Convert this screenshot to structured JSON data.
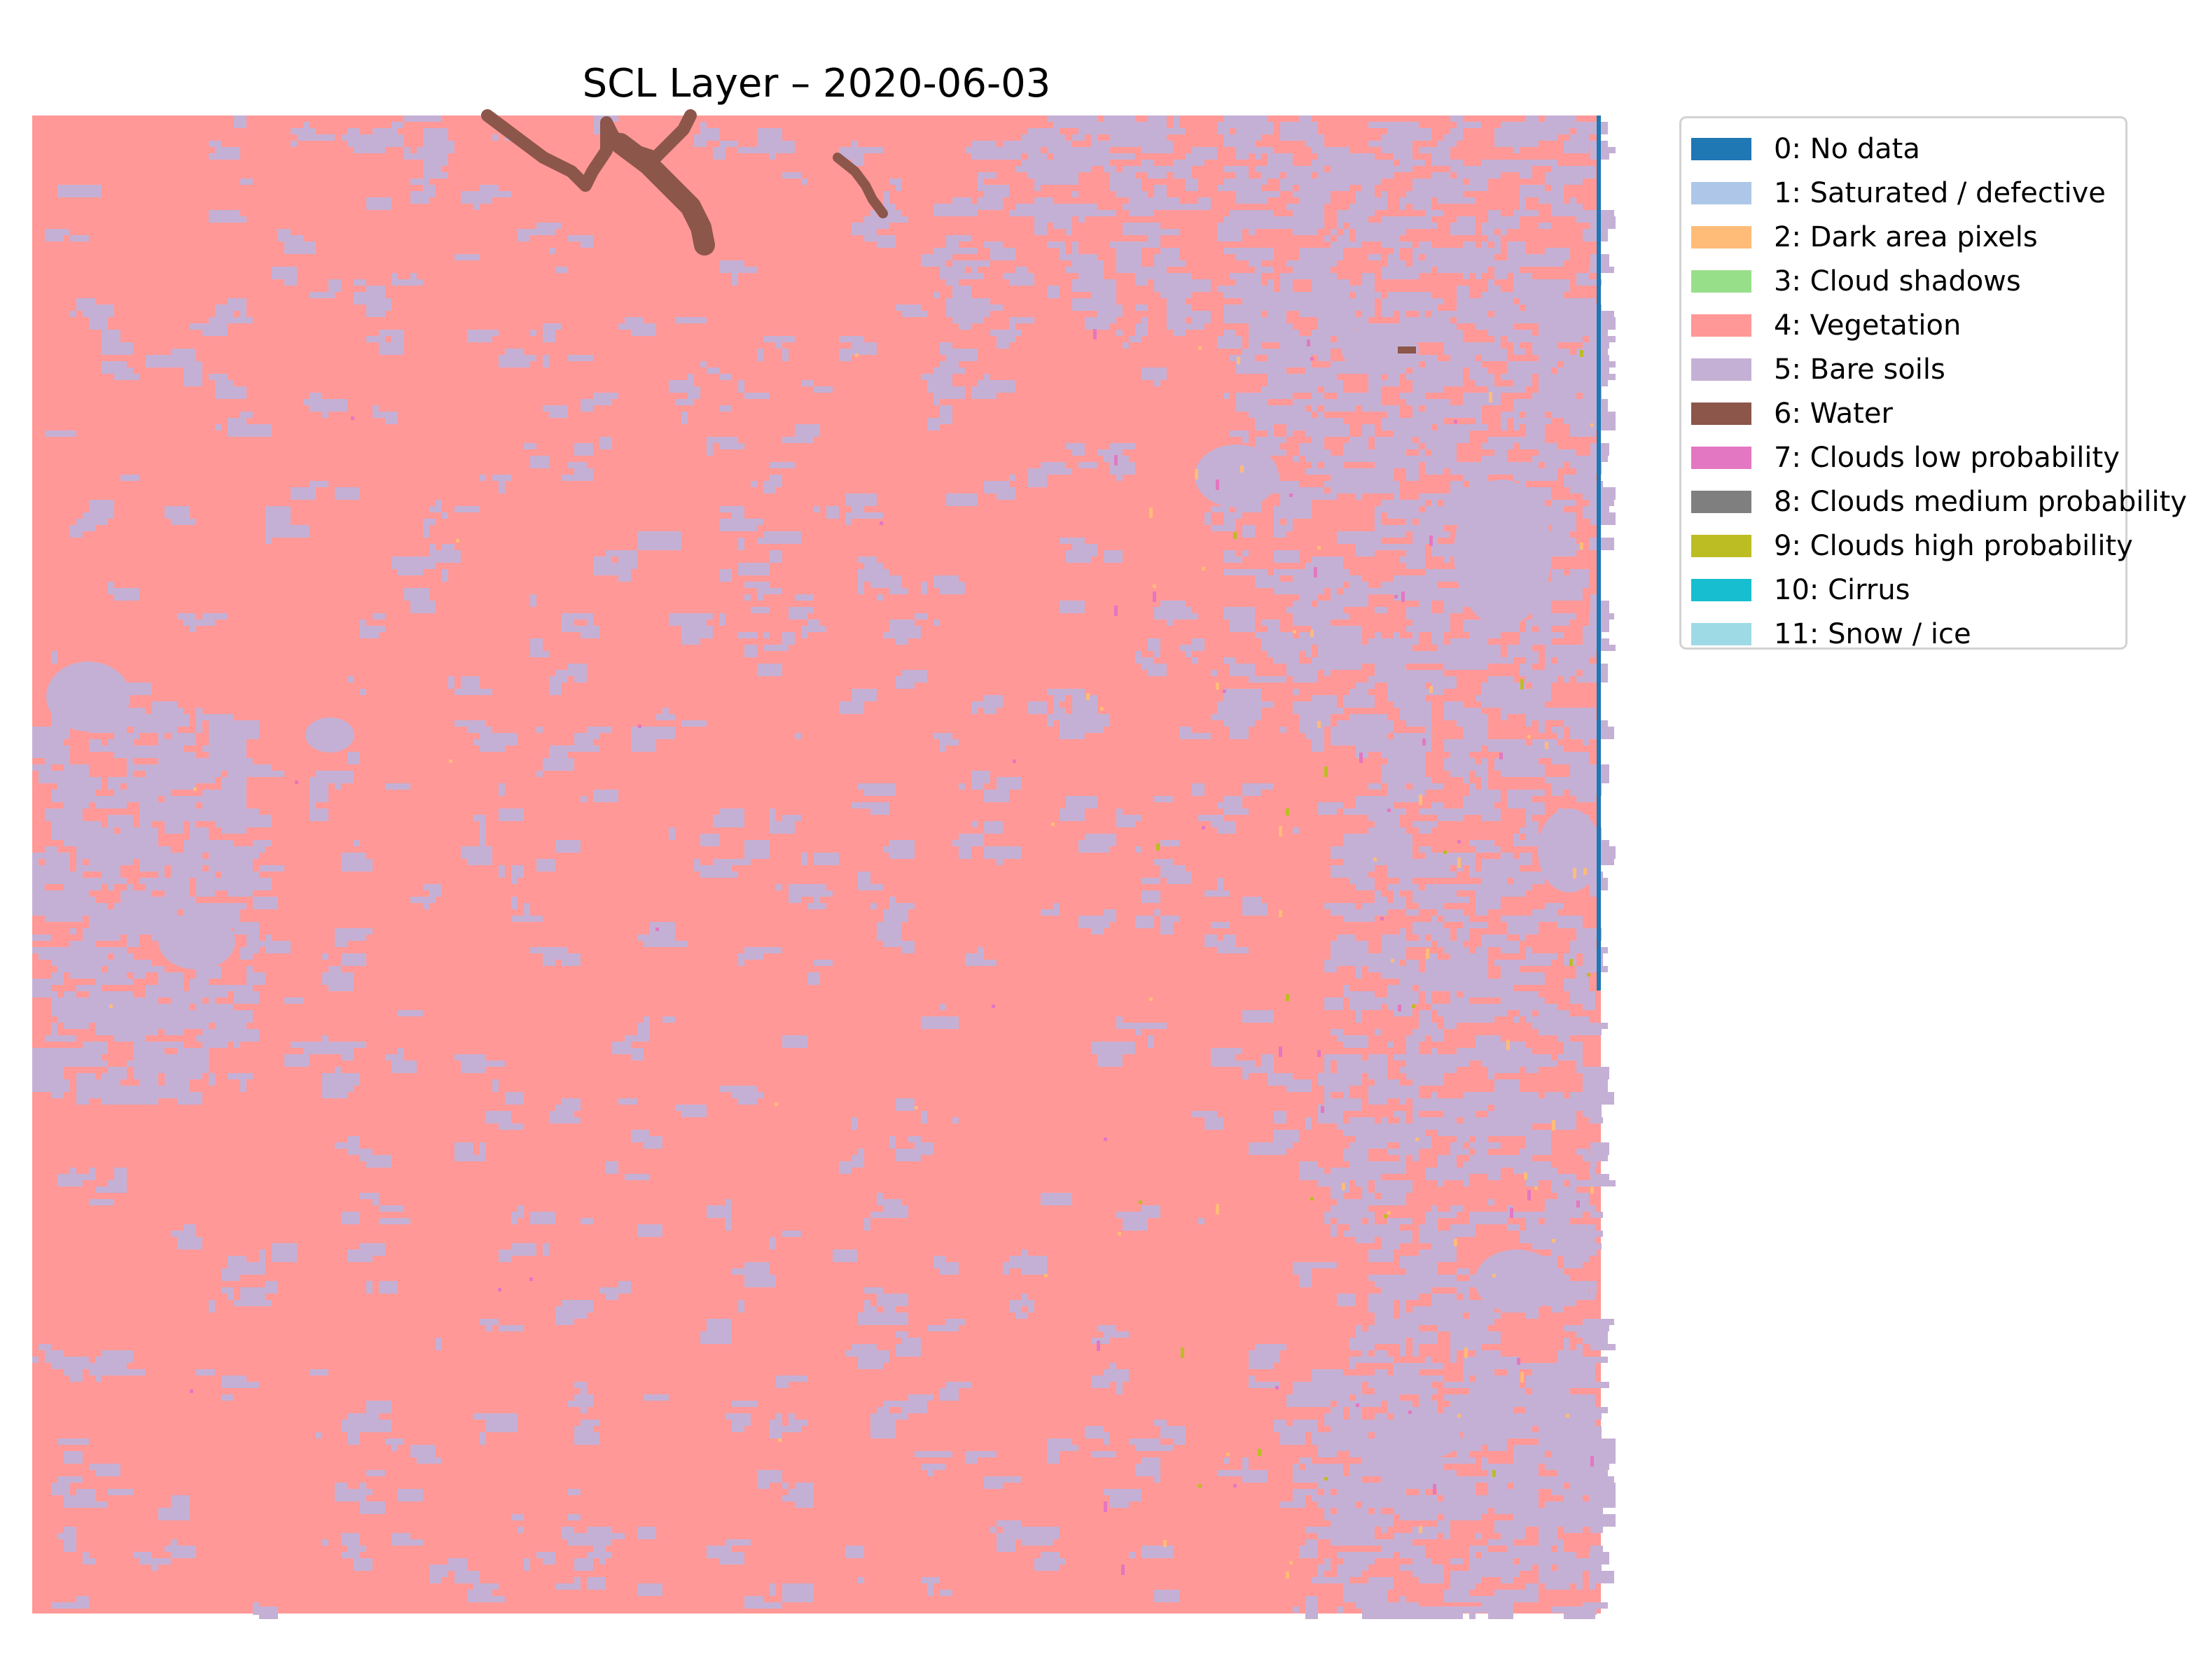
{
  "title": "SCL Layer – 2020-06-03",
  "map": {
    "colors": {
      "vegetation": "#ff9896",
      "bare_soils": "#c5b0d5",
      "water": "#8c564b",
      "no_data": "#1f77b4",
      "dark_area": "#ffbb78",
      "clouds_low": "#e377c2",
      "clouds_high": "#bcbd22"
    }
  },
  "legend": {
    "placement": "outside-upper-right",
    "items": [
      {
        "label": "0: No data",
        "color": "#1f77b4"
      },
      {
        "label": "1: Saturated / defective",
        "color": "#aec7e8"
      },
      {
        "label": "2: Dark area pixels",
        "color": "#ffbb78"
      },
      {
        "label": "3: Cloud shadows",
        "color": "#98df8a"
      },
      {
        "label": "4: Vegetation",
        "color": "#ff9896"
      },
      {
        "label": "5: Bare soils",
        "color": "#c5b0d5"
      },
      {
        "label": "6: Water",
        "color": "#8c564b"
      },
      {
        "label": "7: Clouds low probability",
        "color": "#e377c2"
      },
      {
        "label": "8: Clouds medium probability",
        "color": "#7f7f7f"
      },
      {
        "label": "9: Clouds high probability",
        "color": "#bcbd22"
      },
      {
        "label": "10: Cirrus",
        "color": "#17becf"
      },
      {
        "label": "11: Snow / ice",
        "color": "#9edae5"
      }
    ]
  }
}
